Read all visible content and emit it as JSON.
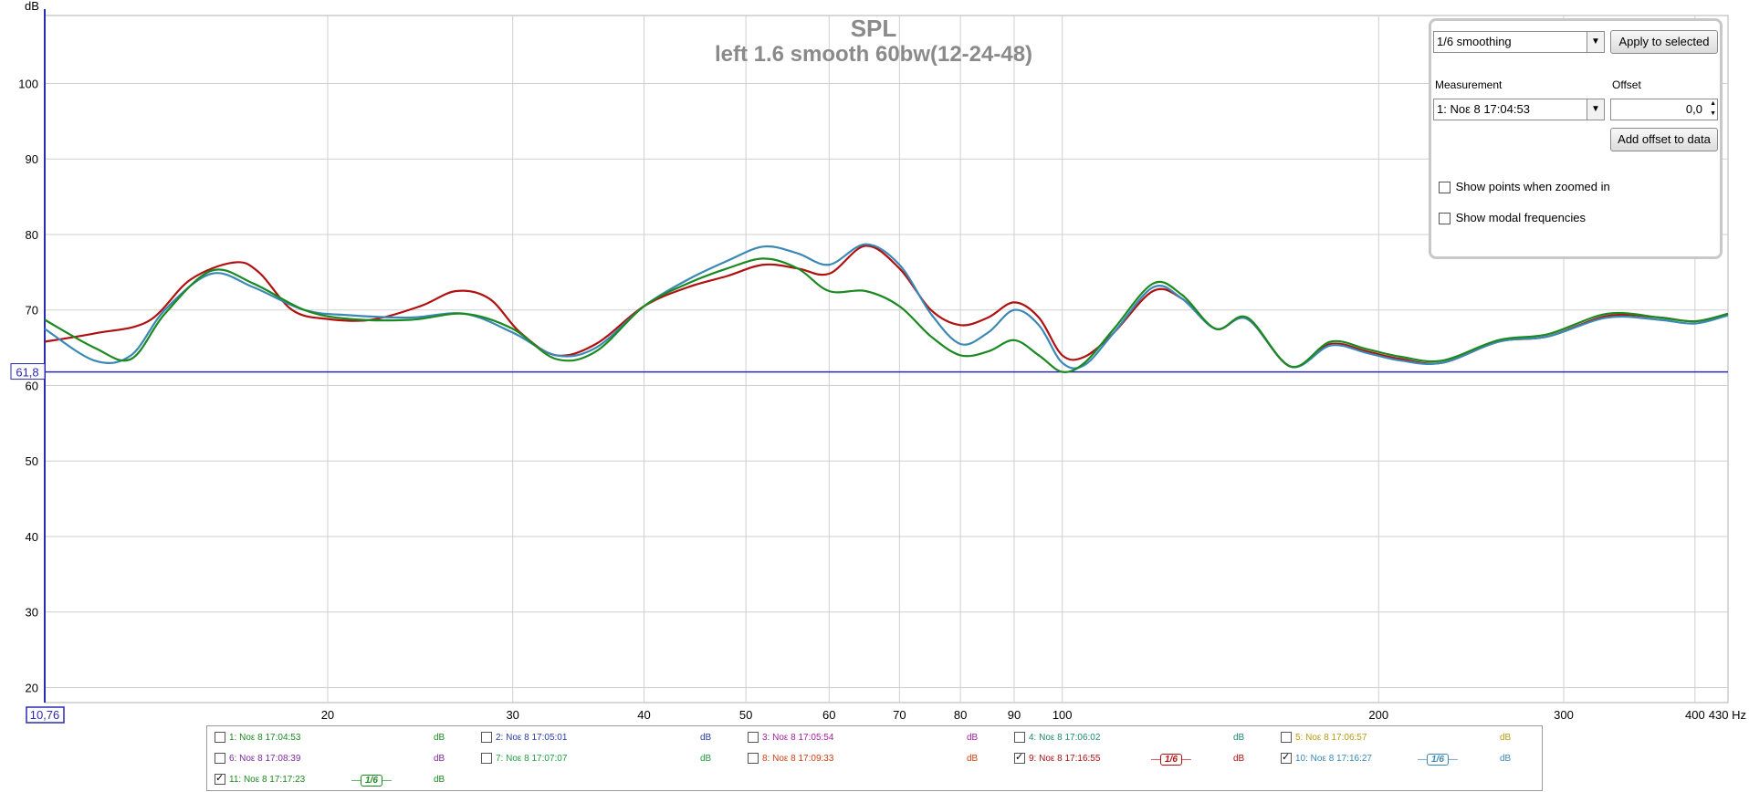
{
  "chart_data": {
    "type": "line",
    "title": "SPL",
    "subtitle": "left 1.6 smooth 60bw(12-24-48)",
    "ylabel": "dB",
    "xunit": "Hz",
    "xscale": "log",
    "xlim": [
      10.76,
      430
    ],
    "ylim": [
      18,
      109
    ],
    "grid": true,
    "x_ticks": [
      20,
      30,
      40,
      50,
      60,
      70,
      80,
      90,
      100,
      200,
      300,
      400
    ],
    "x_tick_labels": [
      "20",
      "30",
      "40",
      "50",
      "60",
      "70",
      "80",
      "90",
      "100",
      "200",
      "300",
      "400"
    ],
    "x_end_label": "430 Hz",
    "x_start_label": "10,76",
    "y_ticks": [
      20,
      30,
      40,
      50,
      60,
      70,
      80,
      90,
      100
    ],
    "y_tick_labels": [
      "20",
      "30",
      "40",
      "50",
      "60",
      "70",
      "80",
      "90",
      "100"
    ],
    "marker_line": {
      "value": 61.8,
      "label": "61,8",
      "color": "#2b2bb0"
    },
    "series": [
      {
        "name": "9: Νοε 8 17:16:55",
        "color": "#b01010",
        "x": [
          10.76,
          12,
          13.5,
          14.8,
          16.3,
          17.2,
          18.5,
          20,
          22,
          24.5,
          26.5,
          28.5,
          30.5,
          33,
          36,
          40,
          44,
          48,
          52,
          56,
          60,
          65,
          70,
          75,
          80,
          85,
          90,
          95,
          100,
          105,
          112,
          122,
          130,
          140,
          150,
          165,
          180,
          195,
          210,
          230,
          260,
          290,
          330,
          370,
          400,
          430
        ],
        "y": [
          65.8,
          66.9,
          68.5,
          74,
          76.3,
          75,
          70,
          68.8,
          68.7,
          70.5,
          72.5,
          71.5,
          67,
          64,
          65.5,
          70.5,
          73,
          74.5,
          76,
          75.5,
          74.8,
          78.5,
          75.5,
          70,
          68,
          69,
          71,
          69,
          64,
          63.8,
          67,
          72.5,
          71.5,
          67.5,
          68.8,
          62.5,
          65.5,
          64.5,
          63.5,
          63,
          65.8,
          66.5,
          69.2,
          69,
          68.5,
          69.5
        ]
      },
      {
        "name": "10: Νοε 8 17:16:27",
        "color": "#3a88b4",
        "x": [
          10.76,
          12,
          13,
          14,
          15.5,
          17,
          19,
          21,
          24,
          27,
          30,
          33,
          36,
          40,
          44,
          48,
          52,
          56,
          60,
          65,
          70,
          75,
          80,
          85,
          90,
          95,
          100,
          105,
          112,
          122,
          130,
          140,
          150,
          165,
          180,
          195,
          210,
          230,
          260,
          290,
          330,
          370,
          400,
          430
        ],
        "y": [
          67.5,
          63.3,
          64,
          70,
          74.8,
          73,
          70,
          69.3,
          69,
          69.5,
          67,
          64,
          65,
          70.5,
          74,
          76.5,
          78.4,
          77.5,
          76,
          78.7,
          76,
          69.5,
          65.5,
          67,
          70,
          68,
          63,
          62.7,
          67,
          73,
          71.5,
          67.5,
          68.8,
          62.5,
          65.3,
          64.3,
          63.3,
          63,
          65.8,
          66.5,
          69,
          68.7,
          68.2,
          69.3
        ]
      },
      {
        "name": "11: Νοε 8 17:17:23",
        "color": "#1a8a20",
        "x": [
          10.76,
          12,
          13,
          14,
          15.5,
          17,
          19,
          21,
          24,
          27,
          30,
          33,
          36,
          40,
          44,
          48,
          52,
          56,
          60,
          65,
          70,
          75,
          80,
          85,
          90,
          95,
          100,
          105,
          112,
          122,
          130,
          140,
          150,
          165,
          180,
          195,
          210,
          230,
          260,
          290,
          330,
          370,
          400,
          430
        ],
        "y": [
          68.7,
          65,
          63.5,
          69.5,
          75.2,
          73.5,
          70,
          68.8,
          68.7,
          69.5,
          67.5,
          63.5,
          64.5,
          70.5,
          73.5,
          75.5,
          76.8,
          75.5,
          72.5,
          72.5,
          70.5,
          66.5,
          64,
          64.5,
          66,
          64,
          61.8,
          63,
          67.5,
          73.5,
          72,
          67.5,
          69,
          62.5,
          65.8,
          64.8,
          63.8,
          63.3,
          66,
          66.8,
          69.5,
          69,
          68.5,
          69.5
        ]
      }
    ]
  },
  "controls": {
    "smoothing_select": "1/6 smoothing",
    "apply_button": "Apply to selected",
    "measurement_label": "Measurement",
    "measurement_select": "1: Νοε 8 17:04:53",
    "offset_label": "Offset",
    "offset_value": "0,0",
    "add_offset_button": "Add offset to data",
    "show_points_label": "Show points when zoomed in",
    "show_points_checked": false,
    "show_modal_label": "Show modal frequencies",
    "show_modal_checked": false
  },
  "legend": {
    "unit": "dB",
    "smoothing_badge": "1/6",
    "items": [
      {
        "label": "1: Νοε 8 17:04:53",
        "color": "#1a8a20",
        "db_color": "#1a8a20",
        "checked": false,
        "badge": false
      },
      {
        "label": "2: Νοε 8 17:05:01",
        "color": "#2a3aa8",
        "db_color": "#2a3aa8",
        "checked": false,
        "badge": false
      },
      {
        "label": "3: Νοε 8 17:05:54",
        "color": "#a020a0",
        "db_color": "#a020a0",
        "checked": false,
        "badge": false
      },
      {
        "label": "4: Νοε 8 17:06:02",
        "color": "#1a8a70",
        "db_color": "#1a8a70",
        "checked": false,
        "badge": false
      },
      {
        "label": "5: Νοε 8 17:06:57",
        "color": "#b89a10",
        "db_color": "#b89a10",
        "checked": false,
        "badge": false
      },
      {
        "label": "6: Νοε 8 17:08:39",
        "color": "#7a2aa0",
        "db_color": "#7a2aa0",
        "checked": false,
        "badge": false
      },
      {
        "label": "7: Νοε 8 17:07:07",
        "color": "#20a040",
        "db_color": "#20a040",
        "checked": false,
        "badge": false
      },
      {
        "label": "8: Νοε 8 17:09:33",
        "color": "#d04010",
        "db_color": "#d04010",
        "checked": false,
        "badge": false
      },
      {
        "label": "9: Νοε 8 17:16:55",
        "color": "#b01010",
        "db_color": "#b01010",
        "checked": true,
        "badge": true
      },
      {
        "label": "10: Νοε 8 17:16:27",
        "color": "#3a88b4",
        "db_color": "#3a88b4",
        "checked": true,
        "badge": true
      },
      {
        "label": "11: Νοε 8 17:17:23",
        "color": "#1a8a20",
        "db_color": "#1a8a20",
        "checked": true,
        "badge": true
      }
    ]
  }
}
